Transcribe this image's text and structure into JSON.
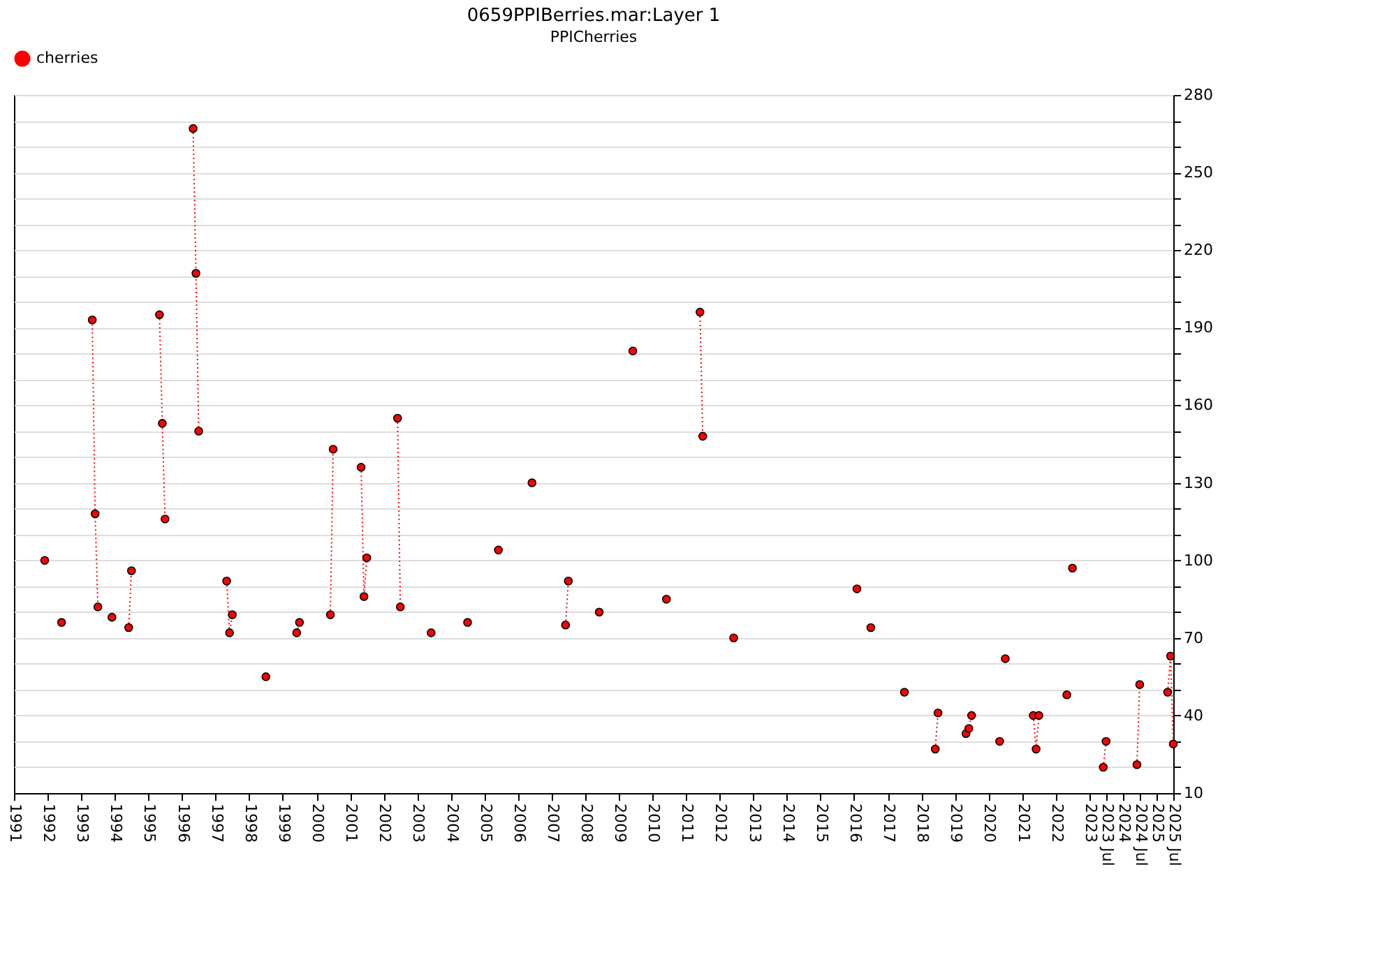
{
  "chart_data": {
    "type": "line",
    "title": "0659PPIBerries.mar:Layer 1",
    "subtitle": "PPICherries",
    "x": [
      "1991-12",
      "1992-01",
      "1992-06",
      "1992-07",
      "1993-05",
      "1993-06",
      "1993-07",
      "1993-08",
      "1993-12",
      "1994-01",
      "1994-06",
      "1994-07",
      "1994-08",
      "1995-05",
      "1995-06",
      "1995-07",
      "1995-08",
      "1996-05",
      "1996-06",
      "1996-07",
      "1996-08",
      "1997-05",
      "1997-06",
      "1997-07",
      "1997-08",
      "1998-07",
      "1998-08",
      "1999-06",
      "1999-07",
      "1999-08",
      "2000-06",
      "2000-07",
      "2000-08",
      "2001-05",
      "2001-06",
      "2001-07",
      "2001-08",
      "2002-06",
      "2002-07",
      "2002-08",
      "2003-06",
      "2003-07",
      "2004-07",
      "2004-08",
      "2005-06",
      "2005-07",
      "2006-06",
      "2006-07",
      "2007-06",
      "2007-07",
      "2007-08",
      "2008-06",
      "2008-07",
      "2009-06",
      "2009-07",
      "2010-06",
      "2010-07",
      "2011-06",
      "2011-07",
      "2011-08",
      "2012-06",
      "2012-07",
      "2016-02",
      "2016-03",
      "2016-07",
      "2016-08",
      "2017-07",
      "2017-08",
      "2018-06",
      "2018-07",
      "2018-08",
      "2019-05",
      "2019-06",
      "2019-07",
      "2019-08",
      "2020-05",
      "2020-06",
      "2020-07",
      "2020-08",
      "2021-05",
      "2021-06",
      "2021-07",
      "2021-08",
      "2022-05",
      "2022-06",
      "2022-07",
      "2022-08",
      "2023-06",
      "2023-07",
      "2023-08",
      "2024-06",
      "2024-07",
      "2024-08",
      "2025-05",
      "2025-06",
      "2025-07"
    ],
    "series": [
      {
        "name": "cherries",
        "color": "#ff0000",
        "values": [
          100,
          null,
          76,
          null,
          193,
          118,
          82,
          null,
          78,
          null,
          74,
          96,
          null,
          195,
          153,
          116,
          null,
          267,
          211,
          150,
          null,
          92,
          72,
          79,
          null,
          55,
          null,
          72,
          76,
          null,
          79,
          143,
          null,
          136,
          86,
          101,
          null,
          155,
          82,
          null,
          72,
          null,
          76,
          null,
          104,
          null,
          130,
          null,
          75,
          92,
          null,
          80,
          null,
          181,
          null,
          85,
          null,
          196,
          148,
          null,
          70,
          null,
          89,
          null,
          74,
          null,
          49,
          null,
          27,
          41,
          null,
          33,
          35,
          40,
          null,
          30,
          null,
          62,
          null,
          40,
          27,
          40,
          null,
          48,
          null,
          97,
          null,
          20,
          30,
          null,
          21,
          52,
          null,
          49,
          63,
          29
        ]
      }
    ],
    "xlim": [
      "1991-01",
      "2025-07"
    ],
    "xticks": [
      "1991",
      "1992",
      "1993",
      "1994",
      "1995",
      "1996",
      "1997",
      "1998",
      "1999",
      "2000",
      "2001",
      "2002",
      "2003",
      "2004",
      "2005",
      "2006",
      "2007",
      "2008",
      "2009",
      "2010",
      "2011",
      "2012",
      "2013",
      "2014",
      "2015",
      "2016",
      "2017",
      "2018",
      "2019",
      "2020",
      "2021",
      "2022",
      "2023",
      {
        "value": "2023-07",
        "label": "2023 Jul"
      },
      "2024",
      {
        "value": "2024-07",
        "label": "2024 Jul"
      },
      "2025",
      {
        "value": "2025-07",
        "label": "2025 Jul"
      }
    ],
    "ylim": [
      10,
      280
    ],
    "yticks": [
      10,
      {
        "value": 20,
        "label": null
      },
      {
        "value": 30,
        "label": null
      },
      40,
      {
        "value": 50,
        "label": null
      },
      {
        "value": 60,
        "label": null
      },
      70,
      {
        "value": 80,
        "label": null
      },
      {
        "value": 90,
        "label": null
      },
      100,
      {
        "value": 110,
        "label": null
      },
      {
        "value": 120,
        "label": null
      },
      130,
      {
        "value": 140,
        "label": null
      },
      {
        "value": 150,
        "label": null
      },
      160,
      {
        "value": 170,
        "label": null
      },
      {
        "value": 180,
        "label": null
      },
      190,
      {
        "value": 200,
        "label": null
      },
      {
        "value": 210,
        "label": null
      },
      220,
      {
        "value": 230,
        "label": null
      },
      {
        "value": 240,
        "label": null
      },
      250,
      {
        "value": 260,
        "label": null
      },
      {
        "value": 270,
        "label": null
      },
      280
    ],
    "grid": "y",
    "legend": "top",
    "marker": "circle",
    "line_style": "dotted"
  }
}
